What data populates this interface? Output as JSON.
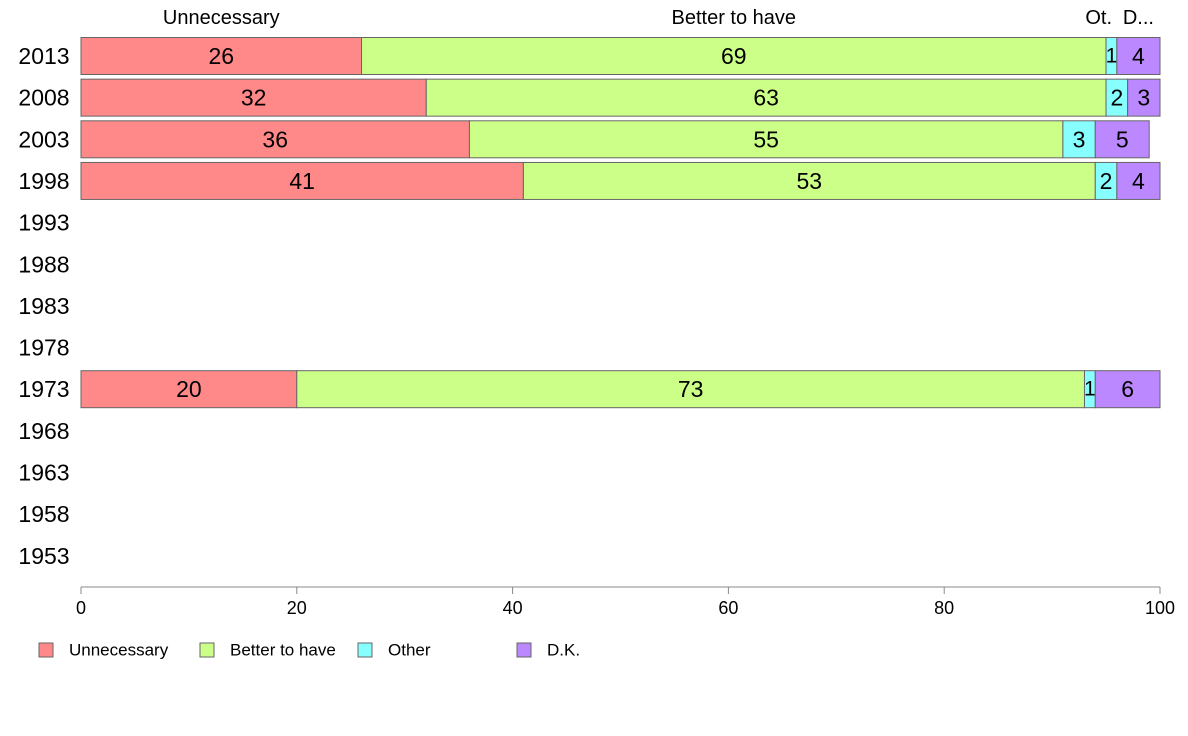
{
  "chart_data": {
    "type": "bar",
    "orientation": "horizontal",
    "stacked": true,
    "categories": [
      "2013",
      "2008",
      "2003",
      "1998",
      "1993",
      "1988",
      "1983",
      "1978",
      "1973",
      "1968",
      "1963",
      "1958",
      "1953"
    ],
    "series": [
      {
        "name": "Unnecessary",
        "header": "Unnecessary",
        "color": "#ff8888",
        "values": [
          26,
          32,
          36,
          41,
          null,
          null,
          null,
          null,
          20,
          null,
          null,
          null,
          null
        ]
      },
      {
        "name": "Better to have",
        "header": "Better to have",
        "color": "#ccff88",
        "values": [
          69,
          63,
          55,
          53,
          null,
          null,
          null,
          null,
          73,
          null,
          null,
          null,
          null
        ]
      },
      {
        "name": "Other",
        "header": "Ot.",
        "color": "#88ffff",
        "values": [
          1,
          2,
          3,
          2,
          null,
          null,
          null,
          null,
          1,
          null,
          null,
          null,
          null
        ]
      },
      {
        "name": "D.K.",
        "header": "D...",
        "color": "#bb88ff",
        "values": [
          4,
          3,
          5,
          4,
          null,
          null,
          null,
          null,
          6,
          null,
          null,
          null,
          null
        ]
      }
    ],
    "xlim": [
      0,
      100
    ],
    "xticks": [
      0,
      20,
      40,
      60,
      80,
      100
    ],
    "xlabel": "",
    "ylabel": "",
    "grid": false,
    "legend_position": "bottom-left"
  }
}
